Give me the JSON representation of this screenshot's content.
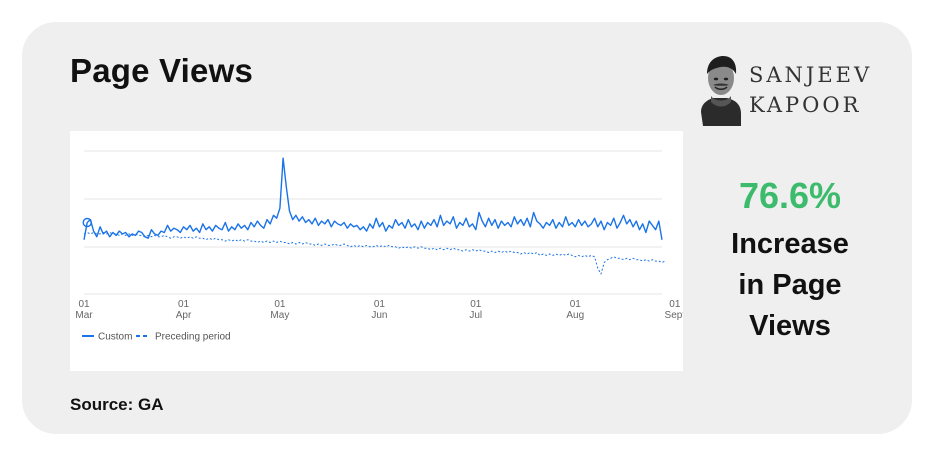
{
  "title": "Page Views",
  "brand": {
    "line1": "SANJEEV",
    "line2": "KAPOOR"
  },
  "stat": {
    "value": "76.6%",
    "line1": "Increase",
    "line2": "in Page",
    "line3": "Views"
  },
  "source": "Source: GA",
  "colors": {
    "custom": "#1a73e8",
    "preceding": "#1a73e8",
    "stat": "#3dbb6d"
  },
  "chart_data": {
    "type": "line",
    "x_range_label": "daily, Mar 01 to mid Sept",
    "x_ticks": [
      {
        "day": "01",
        "month": "Mar"
      },
      {
        "day": "01",
        "month": "Apr"
      },
      {
        "day": "01",
        "month": "May"
      },
      {
        "day": "01",
        "month": "Jun"
      },
      {
        "day": "01",
        "month": "Jul"
      },
      {
        "day": "01",
        "month": "Aug"
      },
      {
        "day": "01",
        "month": "Sept"
      }
    ],
    "x_tick_days": [
      0,
      31,
      61,
      92,
      122,
      153,
      184
    ],
    "y_range": [
      0,
      100
    ],
    "grid": true,
    "legend_position": "bottom-left",
    "series": [
      {
        "name": "Custom",
        "style": "solid",
        "values": [
          38,
          50,
          52,
          44,
          40,
          47,
          42,
          44,
          40,
          43,
          41,
          44,
          42,
          43,
          40,
          42,
          41,
          44,
          43,
          40,
          39,
          45,
          42,
          41,
          44,
          43,
          48,
          44,
          46,
          45,
          43,
          47,
          45,
          48,
          44,
          46,
          43,
          49,
          45,
          47,
          44,
          48,
          46,
          45,
          50,
          44,
          47,
          45,
          49,
          46,
          48,
          45,
          50,
          47,
          51,
          48,
          46,
          52,
          49,
          55,
          53,
          60,
          95,
          75,
          58,
          52,
          55,
          51,
          54,
          50,
          52,
          49,
          53,
          48,
          51,
          49,
          52,
          47,
          51,
          49,
          48,
          50,
          46,
          49,
          47,
          48,
          45,
          47,
          44,
          49,
          46,
          53,
          47,
          50,
          44,
          48,
          46,
          52,
          48,
          50,
          46,
          52,
          47,
          49,
          45,
          51,
          46,
          50,
          48,
          52,
          47,
          55,
          48,
          51,
          49,
          54,
          46,
          50,
          48,
          53,
          47,
          49,
          45,
          57,
          51,
          47,
          53,
          48,
          52,
          46,
          51,
          48,
          50,
          47,
          54,
          49,
          52,
          48,
          53,
          47,
          57,
          51,
          49,
          46,
          50,
          48,
          52,
          46,
          50,
          47,
          54,
          48,
          50,
          47,
          52,
          48,
          51,
          47,
          49,
          53,
          47,
          51,
          45,
          50,
          48,
          53,
          46,
          50,
          55,
          49,
          52,
          47,
          51,
          45,
          49,
          43,
          51,
          48,
          45,
          51,
          38
        ]
      },
      {
        "name": "Preceding period",
        "style": "dashed",
        "values": [
          42,
          43,
          42,
          43,
          42,
          42,
          43,
          42,
          43,
          42,
          42,
          41,
          42,
          41,
          42,
          41,
          42,
          41,
          41,
          40,
          41,
          40,
          41,
          40,
          40,
          41,
          40,
          39,
          40,
          40,
          39,
          40,
          39,
          40,
          39,
          40,
          39,
          39,
          38,
          39,
          38,
          39,
          38,
          38,
          37,
          38,
          37,
          38,
          37,
          38,
          37,
          38,
          37,
          37,
          36,
          37,
          36,
          37,
          36,
          37,
          36,
          37,
          36,
          36,
          35,
          36,
          35,
          36,
          35,
          36,
          35,
          35,
          34,
          35,
          34,
          35,
          34,
          34,
          35,
          34,
          34,
          35,
          34,
          33,
          34,
          33,
          34,
          33,
          34,
          33,
          33,
          34,
          33,
          34,
          33,
          34,
          33,
          33,
          32,
          33,
          32,
          33,
          32,
          33,
          32,
          33,
          32,
          32,
          31,
          32,
          31,
          32,
          31,
          32,
          31,
          32,
          31,
          31,
          30,
          31,
          30,
          31,
          30,
          31,
          30,
          30,
          29,
          30,
          29,
          30,
          29,
          30,
          29,
          30,
          29,
          29,
          28,
          29,
          28,
          29,
          28,
          29,
          27,
          28,
          27,
          28,
          27,
          28,
          27,
          28,
          27,
          28,
          27,
          26,
          27,
          26,
          27,
          26,
          27,
          26,
          18,
          14,
          22,
          24,
          25,
          26,
          25,
          25,
          24,
          25,
          24,
          25,
          24,
          24,
          23,
          24,
          23,
          24,
          23,
          23,
          22,
          23
        ]
      }
    ]
  }
}
